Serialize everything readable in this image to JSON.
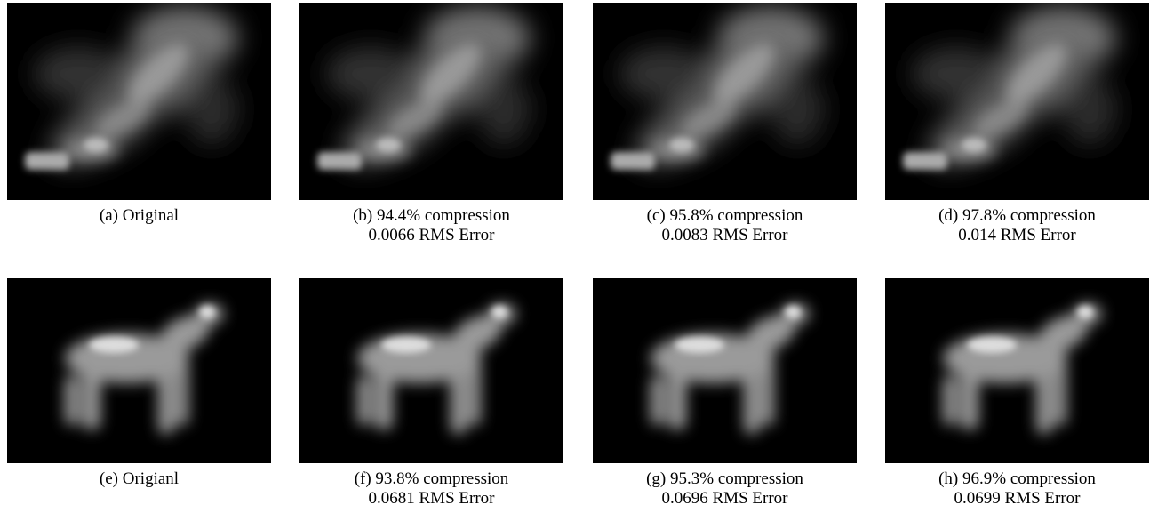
{
  "panels": [
    [
      "(a) Original"
    ],
    [
      "(b) 94.4% compression",
      "0.0066 RMS Error"
    ],
    [
      "(c) 95.8% compression",
      "0.0083 RMS Error"
    ],
    [
      "(d) 97.8% compression",
      "0.014 RMS Error"
    ],
    [
      "(e) Origianl"
    ],
    [
      "(f) 93.8% compression",
      "0.0681 RMS Error"
    ],
    [
      "(g) 95.3% compression",
      "0.0696 RMS Error"
    ],
    [
      "(h) 96.9% compression",
      "0.0699 RMS Error"
    ]
  ]
}
